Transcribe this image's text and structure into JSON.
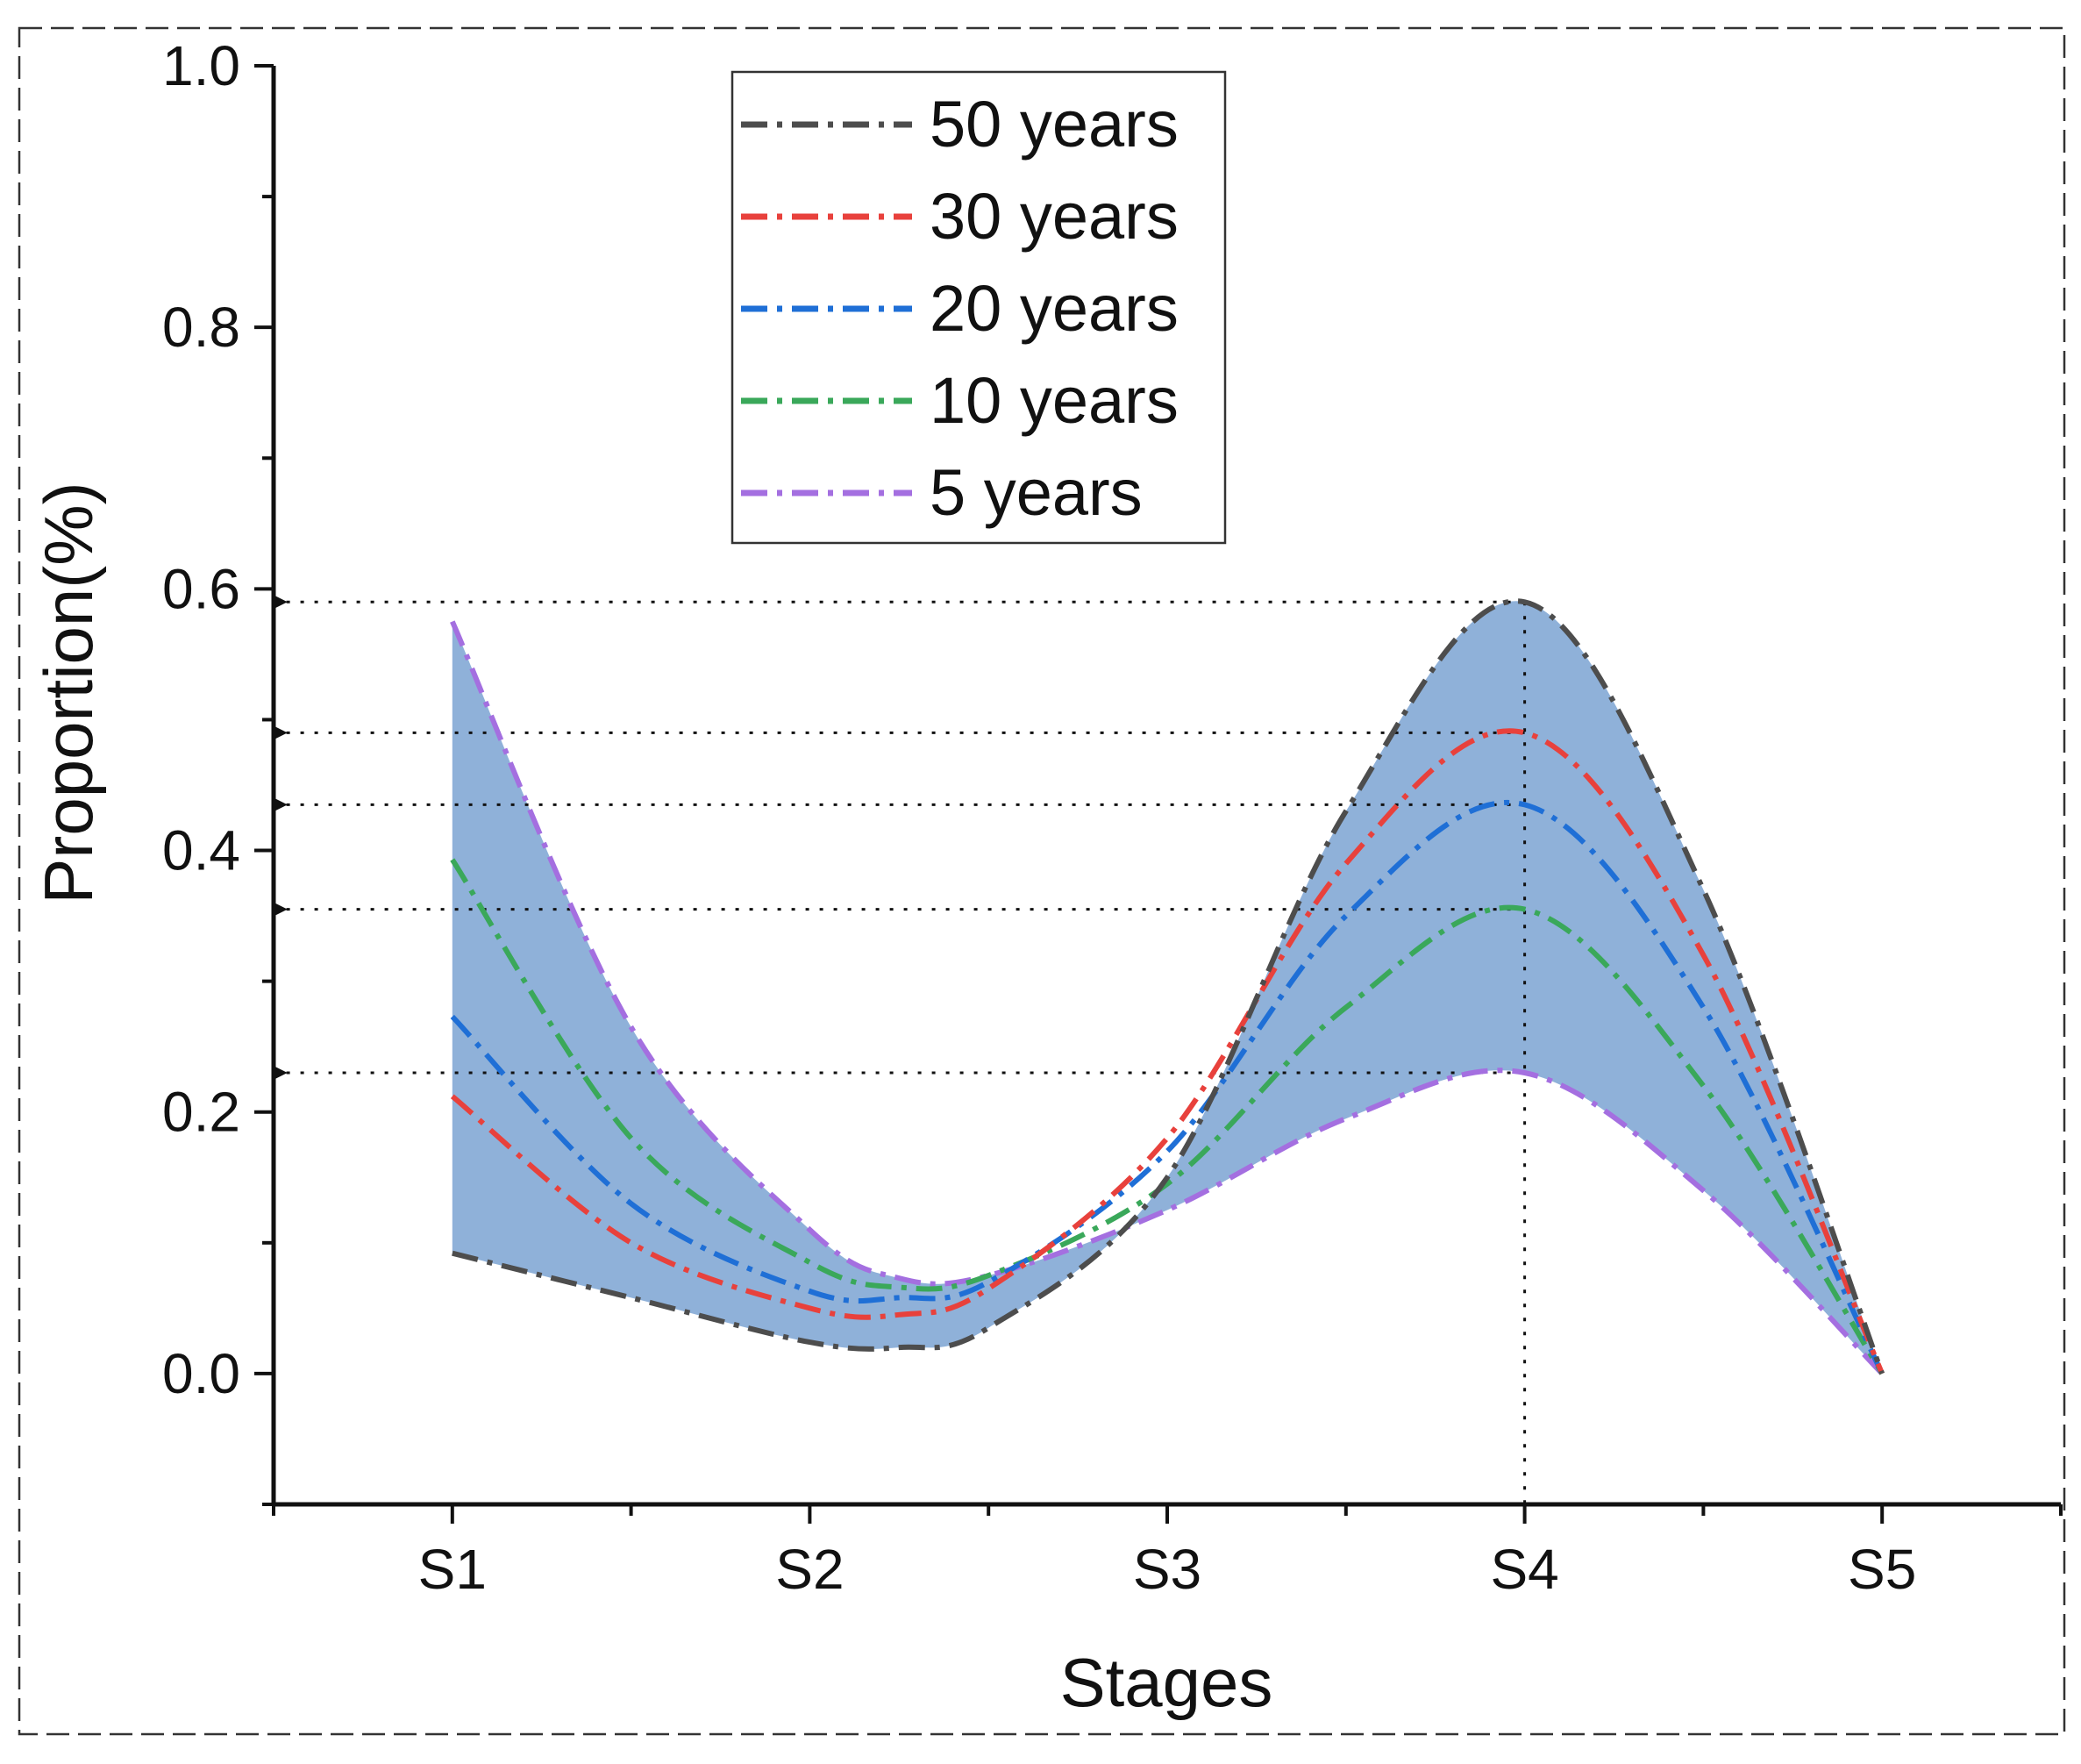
{
  "chart_data": {
    "type": "line",
    "title": "",
    "xlabel": "Stages",
    "ylabel": "Proportion(%)",
    "categories": [
      "S1",
      "S2",
      "S3",
      "S4",
      "S5"
    ],
    "xlim": [
      0.5,
      5.5
    ],
    "ylim": [
      -0.1,
      1.0
    ],
    "yticks": [
      0.0,
      0.2,
      0.4,
      0.6,
      0.8,
      1.0
    ],
    "ytick_labels": [
      "0.0",
      "0.2",
      "0.4",
      "0.6",
      "0.8",
      "1.0"
    ],
    "grid": false,
    "legend_position": "top-center",
    "fill": {
      "between": [
        "50 years",
        "5 years"
      ],
      "color": "#8fb1d9"
    },
    "reference_lines": {
      "vertical_at": "S4",
      "horizontal_values": [
        0.59,
        0.49,
        0.435,
        0.355,
        0.23
      ]
    },
    "series": [
      {
        "name": "50 years",
        "color": "#4d4d4d",
        "points": [
          [
            1.0,
            0.092
          ],
          [
            1.5,
            0.058
          ],
          [
            2.0,
            0.024
          ],
          [
            2.25,
            0.02
          ],
          [
            2.5,
            0.035
          ],
          [
            3.0,
            0.15
          ],
          [
            3.5,
            0.43
          ],
          [
            4.0,
            0.59
          ],
          [
            4.5,
            0.37
          ],
          [
            5.0,
            0.0
          ]
        ]
      },
      {
        "name": "30 years",
        "color": "#e8413c",
        "points": [
          [
            1.0,
            0.212
          ],
          [
            1.5,
            0.1
          ],
          [
            2.0,
            0.05
          ],
          [
            2.25,
            0.045
          ],
          [
            2.5,
            0.065
          ],
          [
            3.0,
            0.18
          ],
          [
            3.5,
            0.39
          ],
          [
            4.0,
            0.49
          ],
          [
            4.5,
            0.32
          ],
          [
            5.0,
            0.0
          ]
        ]
      },
      {
        "name": "20 years",
        "color": "#1f6fd6",
        "points": [
          [
            1.0,
            0.273
          ],
          [
            1.5,
            0.13
          ],
          [
            2.0,
            0.063
          ],
          [
            2.25,
            0.058
          ],
          [
            2.5,
            0.07
          ],
          [
            3.0,
            0.17
          ],
          [
            3.5,
            0.35
          ],
          [
            4.0,
            0.435
          ],
          [
            4.5,
            0.28
          ],
          [
            5.0,
            0.0
          ]
        ]
      },
      {
        "name": "10 years",
        "color": "#3aa85a",
        "points": [
          [
            1.0,
            0.393
          ],
          [
            1.5,
            0.18
          ],
          [
            2.0,
            0.085
          ],
          [
            2.25,
            0.066
          ],
          [
            2.5,
            0.075
          ],
          [
            3.0,
            0.145
          ],
          [
            3.5,
            0.28
          ],
          [
            4.0,
            0.355
          ],
          [
            4.5,
            0.22
          ],
          [
            5.0,
            0.0
          ]
        ]
      },
      {
        "name": "5 years",
        "color": "#a46fe0",
        "points": [
          [
            1.0,
            0.575
          ],
          [
            1.5,
            0.265
          ],
          [
            2.0,
            0.11
          ],
          [
            2.25,
            0.073
          ],
          [
            2.5,
            0.075
          ],
          [
            3.0,
            0.125
          ],
          [
            3.5,
            0.195
          ],
          [
            4.0,
            0.23
          ],
          [
            4.5,
            0.14
          ],
          [
            5.0,
            0.0
          ]
        ]
      }
    ]
  }
}
